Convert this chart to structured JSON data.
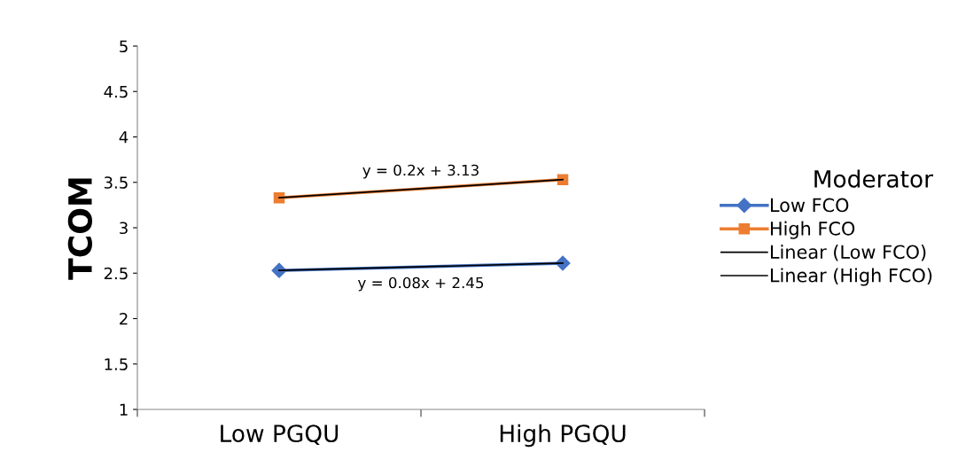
{
  "chart_data": {
    "type": "line",
    "ylabel": "TCOM",
    "categories": [
      "Low PGQU",
      "High PGQU"
    ],
    "series": [
      {
        "name": "Low FCO",
        "color": "#4472c4",
        "values": [
          2.53,
          2.61
        ],
        "marker": "diamond"
      },
      {
        "name": "High FCO",
        "color": "#ed7d31",
        "values": [
          3.33,
          3.53
        ],
        "marker": "square"
      },
      {
        "name": "Linear (Low FCO)",
        "color": "#000000",
        "values": [
          2.53,
          2.61
        ],
        "marker": "none"
      },
      {
        "name": "Linear (High FCO)",
        "color": "#000000",
        "values": [
          3.33,
          3.53
        ],
        "marker": "none"
      }
    ],
    "annotations": [
      {
        "text": "y = 0.2x + 3.13",
        "y": 3.43
      },
      {
        "text": "y = 0.08x + 2.45",
        "y": 2.57
      }
    ],
    "ylim": [
      1,
      5
    ],
    "yticks": [
      1,
      1.5,
      2,
      2.5,
      3,
      3.5,
      4,
      4.5,
      5
    ],
    "legend_title": "Moderator",
    "legend": "right",
    "grid": false,
    "line_style": "solid"
  }
}
